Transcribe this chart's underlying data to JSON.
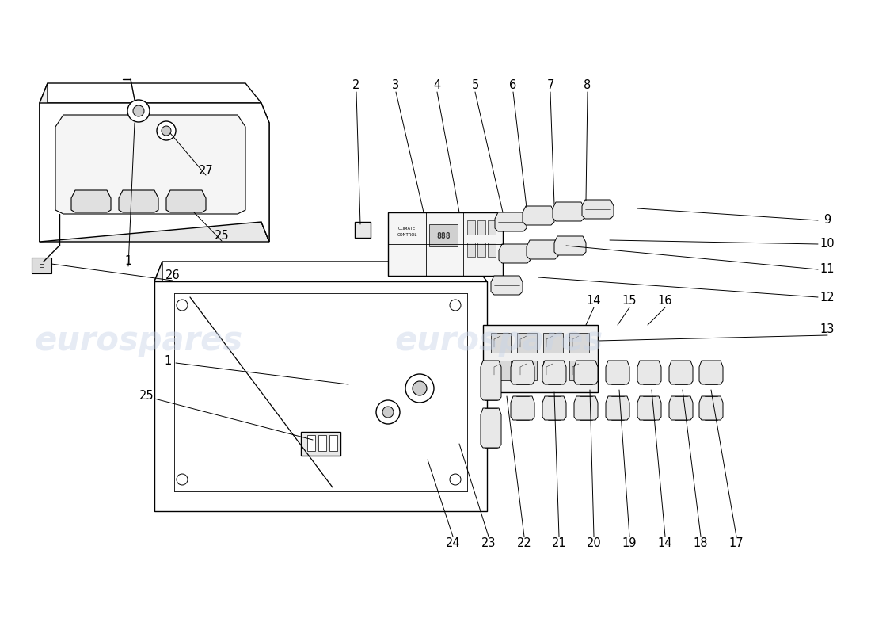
{
  "background_color": "#ffffff",
  "line_color": "#000000",
  "line_width": 1.0,
  "label_fontsize": 10.5,
  "watermark_color": "#c8d4e8",
  "watermark_alpha": 0.45,
  "watermark_text": "eurospares"
}
